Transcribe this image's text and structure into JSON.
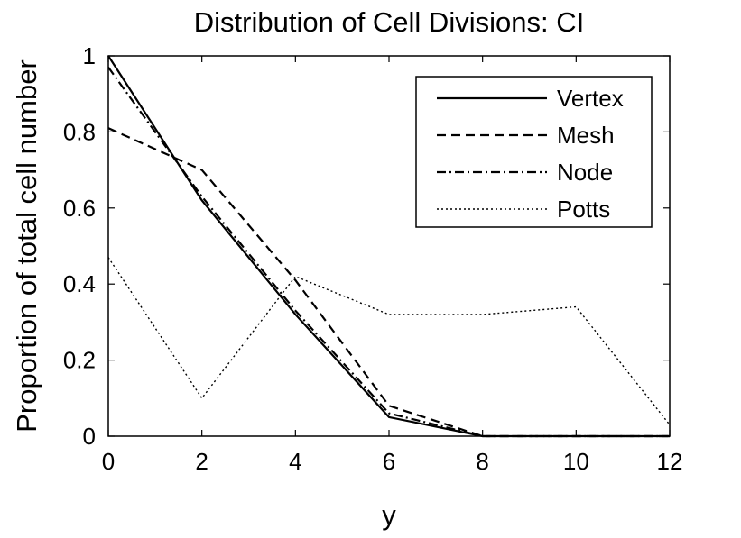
{
  "chart_data": {
    "type": "line",
    "title": "Distribution of Cell Divisions: CI",
    "xlabel": "y",
    "ylabel": "Proportion of total cell number",
    "xlim": [
      0,
      12
    ],
    "ylim": [
      0,
      1
    ],
    "xticks": [
      "0",
      "2",
      "4",
      "6",
      "8",
      "10",
      "12"
    ],
    "yticks": [
      "0",
      "0.2",
      "0.4",
      "0.6",
      "0.8",
      "1"
    ],
    "grid": false,
    "legend_position": "top-right",
    "x": [
      0,
      2,
      4,
      6,
      8,
      10,
      12
    ],
    "series": [
      {
        "name": "Vertex",
        "style": "solid",
        "values": [
          1.0,
          0.62,
          0.32,
          0.05,
          0.0,
          0.0,
          0.0
        ]
      },
      {
        "name": "Mesh",
        "style": "dashed",
        "values": [
          0.81,
          0.7,
          0.41,
          0.08,
          0.0,
          0.0,
          0.0
        ]
      },
      {
        "name": "Node",
        "style": "dashdot",
        "values": [
          0.97,
          0.63,
          0.33,
          0.06,
          0.0,
          0.0,
          0.0
        ]
      },
      {
        "name": "Potts",
        "style": "dotted",
        "values": [
          0.47,
          0.1,
          0.42,
          0.32,
          0.32,
          0.34,
          0.03
        ]
      }
    ]
  }
}
